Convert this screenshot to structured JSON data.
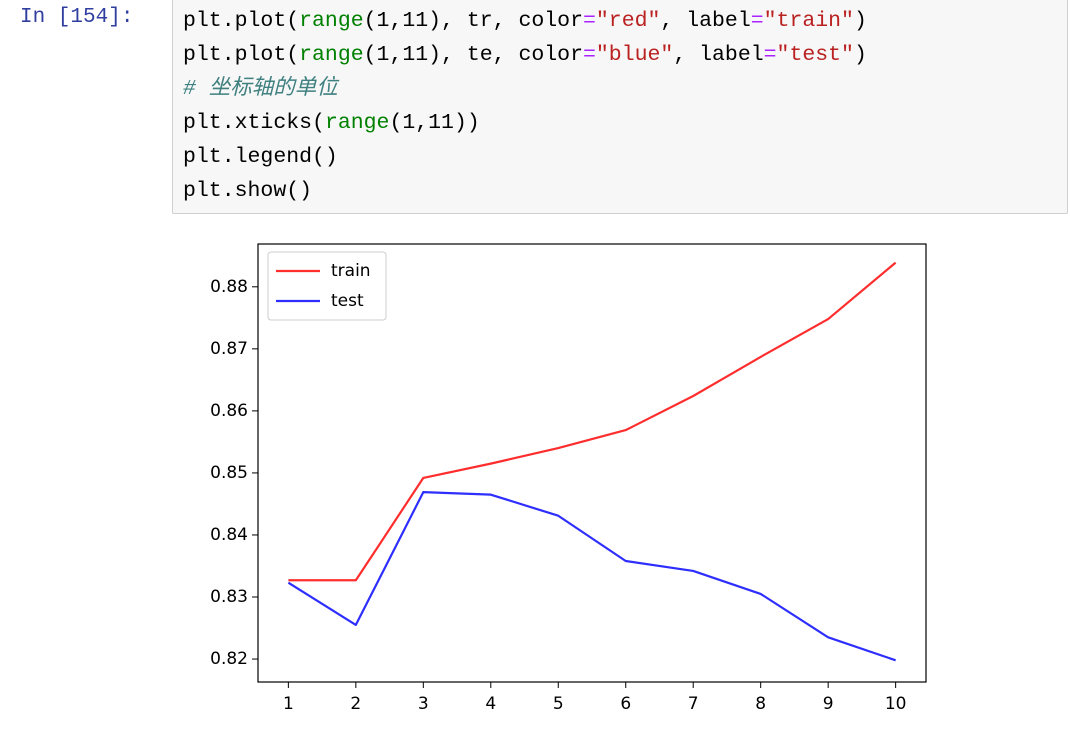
{
  "prompt": "In [154]:",
  "code": {
    "lines": [
      [
        {
          "text": "plt.plot(",
          "color": "#000000"
        },
        {
          "text": "range",
          "color": "#008000"
        },
        {
          "text": "(1,11), tr, color",
          "color": "#000000"
        },
        {
          "text": "=",
          "color": "#aa22ff"
        },
        {
          "text": "\"red\"",
          "color": "#ba2121"
        },
        {
          "text": ", label",
          "color": "#000000"
        },
        {
          "text": "=",
          "color": "#aa22ff"
        },
        {
          "text": "\"train\"",
          "color": "#ba2121"
        },
        {
          "text": ")",
          "color": "#000000"
        }
      ],
      [
        {
          "text": "plt.plot(",
          "color": "#000000"
        },
        {
          "text": "range",
          "color": "#008000"
        },
        {
          "text": "(1,11), te, color",
          "color": "#000000"
        },
        {
          "text": "=",
          "color": "#aa22ff"
        },
        {
          "text": "\"blue\"",
          "color": "#ba2121"
        },
        {
          "text": ", label",
          "color": "#000000"
        },
        {
          "text": "=",
          "color": "#aa22ff"
        },
        {
          "text": "\"test\"",
          "color": "#ba2121"
        },
        {
          "text": ")",
          "color": "#000000"
        }
      ],
      [
        {
          "text": "# 坐标轴的单位",
          "color": "#408080",
          "italic": true
        }
      ],
      [
        {
          "text": "plt.xticks(",
          "color": "#000000"
        },
        {
          "text": "range",
          "color": "#008000"
        },
        {
          "text": "(1,11))",
          "color": "#000000"
        }
      ],
      [
        {
          "text": "plt.legend()",
          "color": "#000000"
        }
      ],
      [
        {
          "text": "plt.show()",
          "color": "#000000"
        }
      ]
    ]
  },
  "chart_data": {
    "type": "line",
    "x": [
      1,
      2,
      3,
      4,
      5,
      6,
      7,
      8,
      9,
      10
    ],
    "series": [
      {
        "name": "train",
        "color": "#ff2e2e",
        "values": [
          0.8327,
          0.8327,
          0.8492,
          0.8515,
          0.854,
          0.8569,
          0.8624,
          0.8687,
          0.8748,
          0.8839
        ]
      },
      {
        "name": "test",
        "color": "#2e2eff",
        "values": [
          0.8323,
          0.8255,
          0.8469,
          0.8465,
          0.8431,
          0.8358,
          0.8342,
          0.8305,
          0.8235,
          0.8198
        ]
      }
    ],
    "xlim": [
      0.55,
      10.45
    ],
    "xticks": [
      1,
      2,
      3,
      4,
      5,
      6,
      7,
      8,
      9,
      10
    ],
    "ylim": [
      0.8163,
      0.8869
    ],
    "yticks": [
      0.82,
      0.83,
      0.84,
      0.85,
      0.86,
      0.87,
      0.88
    ],
    "legend": "upper-left"
  }
}
